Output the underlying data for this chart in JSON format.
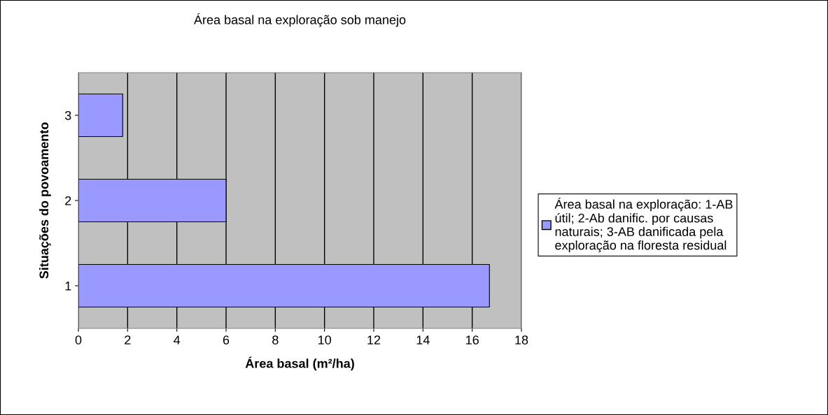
{
  "chart_data": {
    "type": "bar",
    "orientation": "horizontal",
    "title": "Área basal na exploração sob manejo",
    "xlabel": "Área basal (m²/ha)",
    "ylabel": "Situações do povoamento",
    "categories": [
      "3",
      "2",
      "1"
    ],
    "series": [
      {
        "name": "Área basal na exploração: 1-AB útil; 2-Ab danific. por causas naturais; 3-AB danificada pela exploração na floresta residual",
        "color": "#9999ff",
        "values": [
          1.8,
          6.0,
          16.7
        ]
      }
    ],
    "xlim": [
      0,
      18
    ],
    "xticks": [
      0,
      2,
      4,
      6,
      8,
      10,
      12,
      14,
      16,
      18
    ],
    "grid": "x",
    "legend": "right"
  }
}
